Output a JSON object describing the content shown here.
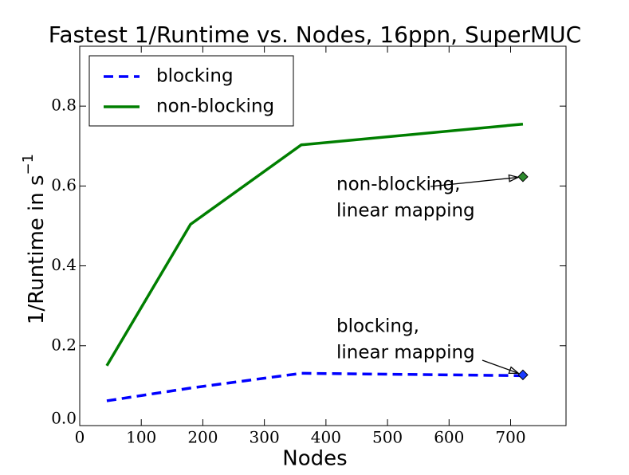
{
  "chart_data": {
    "type": "line",
    "title": "Fastest 1/Runtime vs. Nodes, 16ppn, SuperMUC",
    "xlabel": "Nodes",
    "ylabel": "1/Runtime in s",
    "ylabel_sup": "−1",
    "x": [
      44,
      180,
      360,
      720
    ],
    "series": [
      {
        "name": "blocking",
        "color": "#0000ff",
        "dash": true,
        "values": [
          0.062,
          0.094,
          0.131,
          0.125
        ]
      },
      {
        "name": "non-blocking",
        "color": "#007f00",
        "dash": false,
        "values": [
          0.15,
          0.504,
          0.703,
          0.755
        ]
      }
    ],
    "annotations": [
      {
        "lines": [
          "non-blocking,",
          "linear mapping"
        ],
        "x": 720,
        "y": 0.623,
        "color": "#2e8b2e"
      },
      {
        "lines": [
          "blocking,",
          "linear mapping"
        ],
        "x": 720,
        "y": 0.127,
        "color": "#1a3cff"
      }
    ],
    "xlim": [
      0,
      790
    ],
    "ylim": [
      0,
      0.95
    ],
    "xticks": [
      0,
      100,
      200,
      300,
      400,
      500,
      600,
      700
    ],
    "yticks": [
      {
        "value": 0,
        "label": "0.0"
      },
      0.2,
      0.4,
      0.6,
      0.8
    ],
    "legend": "upper left"
  }
}
